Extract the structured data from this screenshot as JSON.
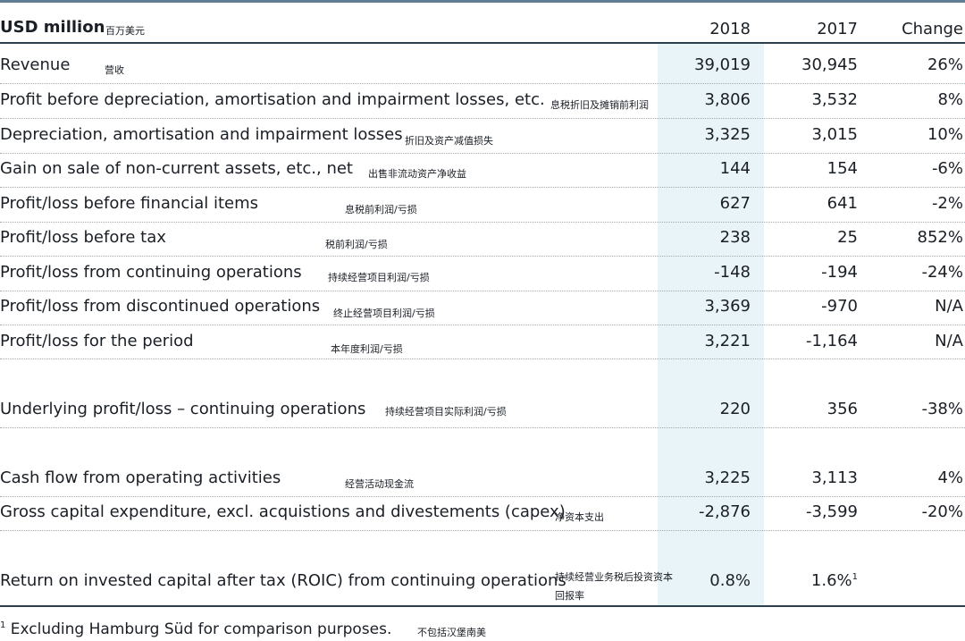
{
  "header": {
    "title": "USD million",
    "title_cn": "百万美元",
    "col_2018": "2018",
    "col_2017": "2017",
    "col_change": "Change"
  },
  "rows": [
    {
      "label": "Revenue",
      "cn": "营收",
      "v2018": "39,019",
      "v2017": "30,945",
      "change": "26%"
    },
    {
      "label": "Profit before depreciation, amortisation and impairment losses, etc.",
      "cn": "息税折旧及摊销前利润",
      "v2018": "3,806",
      "v2017": "3,532",
      "change": "8%"
    },
    {
      "label": "Depreciation, amortisation and impairment losses",
      "cn": "折旧及资产减值损失",
      "v2018": "3,325",
      "v2017": "3,015",
      "change": "10%"
    },
    {
      "label": "Gain on sale of non-current assets, etc., net",
      "cn": "出售非流动资产净收益",
      "v2018": "144",
      "v2017": "154",
      "change": "-6%"
    },
    {
      "label": "Profit/loss before financial items",
      "cn": "息税前利润/亏损",
      "v2018": "627",
      "v2017": "641",
      "change": "-2%"
    },
    {
      "label": "Profit/loss before tax",
      "cn": "税前利润/亏损",
      "v2018": "238",
      "v2017": "25",
      "change": "852%"
    },
    {
      "label": "Profit/loss from continuing operations",
      "cn": "持续经营项目利润/亏损",
      "v2018": "-148",
      "v2017": "-194",
      "change": "-24%"
    },
    {
      "label": "Profit/loss from discontinued operations",
      "cn": "终止经营项目利润/亏损",
      "v2018": "3,369",
      "v2017": "-970",
      "change": "N/A"
    },
    {
      "label": "Profit/loss for the period",
      "cn": "本年度利润/亏损",
      "v2018": "3,221",
      "v2017": "-1,164",
      "change": "N/A"
    },
    {
      "label": "Underlying profit/loss – continuing operations",
      "cn": "持续经营项目实际利润/亏损",
      "v2018": "220",
      "v2017": "356",
      "change": "-38%"
    },
    {
      "label": "Cash flow from operating activities",
      "cn": "经营活动现金流",
      "v2018": "3,225",
      "v2017": "3,113",
      "change": "4%"
    },
    {
      "label": "Gross capital expenditure, excl. acquistions and divestements (capex)",
      "cn": "净资本支出",
      "v2018": "-2,876",
      "v2017": "-3,599",
      "change": "-20%"
    },
    {
      "label": "Return on invested capital after tax (ROIC) from continuing operations",
      "cn_line1": "持续经营业务税后投资资本",
      "cn_line2": "回报率",
      "v2018": "0.8%",
      "v2017": "1.6%",
      "v2017_note": "1",
      "change": ""
    }
  ],
  "footnote": {
    "marker": "1",
    "text": "Excluding Hamburg Süd for comparison purposes.",
    "cn": "不包括汉堡南美"
  }
}
